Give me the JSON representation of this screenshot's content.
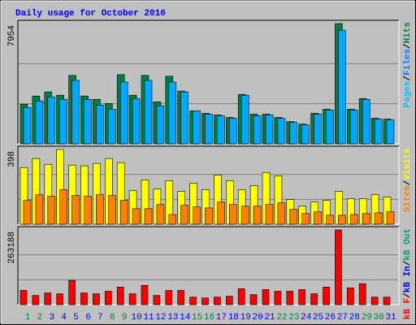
{
  "title": "Daily usage for October 2016",
  "separator": "/",
  "chart_data": [
    {
      "type": "bar",
      "legend": [
        "Pages",
        "Files",
        "Hits"
      ],
      "legend_colors": [
        "#00c0ff",
        "#0080ff",
        "#008040"
      ],
      "series": [
        {
          "color": "#008040",
          "values": [
            2615,
            3160,
            3432,
            3214,
            4522,
            3160,
            2942,
            2670,
            4576,
            3214,
            4522,
            2778,
            4467,
            3487,
            2179,
            2016,
            1907,
            1743,
            3269,
            1961,
            1961,
            1743,
            1471,
            1307,
            2016,
            2288,
            7954,
            2288,
            2996,
            1689,
            1634
          ]
        },
        {
          "color": "#00a8ff",
          "values": [
            2397,
            2833,
            3105,
            2942,
            4195,
            2942,
            2561,
            2288,
            4086,
            2996,
            4195,
            2506,
            4086,
            3432,
            2179,
            1961,
            1852,
            1689,
            3214,
            1852,
            1907,
            1689,
            1416,
            1253,
            1961,
            2234,
            7518,
            2234,
            2942,
            1634,
            1580
          ]
        }
      ],
      "ylim": [
        0,
        7954
      ],
      "yticks": [
        7954
      ]
    },
    {
      "type": "bar",
      "legend": [
        "Sites",
        "Visits"
      ],
      "legend_colors": [
        "#ff8000",
        "#ffff00"
      ],
      "series": [
        {
          "color": "#ffff00",
          "values": [
            302,
            350,
            319,
            398,
            315,
            311,
            324,
            350,
            328,
            179,
            236,
            188,
            232,
            175,
            219,
            184,
            262,
            232,
            184,
            206,
            276,
            258,
            131,
            96,
            118,
            127,
            175,
            136,
            136,
            157,
            144
          ]
        },
        {
          "color": "#ff8000",
          "values": [
            127,
            157,
            149,
            184,
            153,
            149,
            157,
            153,
            127,
            83,
            83,
            105,
            52,
            101,
            92,
            87,
            118,
            105,
            96,
            96,
            105,
            114,
            79,
            57,
            66,
            48,
            48,
            52,
            57,
            61,
            66
          ]
        }
      ],
      "ylim": [
        0,
        398
      ],
      "yticks": [
        398
      ]
    },
    {
      "type": "bar",
      "legend": [
        "kB F",
        "kB In",
        "kB Out"
      ],
      "legend_colors": [
        "#ff0000",
        "#0000ff",
        "#00a080"
      ],
      "series": [
        {
          "color": "#ff0000",
          "values": [
            50270,
            32527,
            41398,
            38441,
            85753,
            41398,
            38441,
            47312,
            62097,
            38441,
            68011,
            32527,
            50270,
            50270,
            26613,
            23656,
            26613,
            29570,
            56183,
            35484,
            53226,
            47312,
            47312,
            53226,
            38441,
            62097,
            263188,
            59140,
            73925,
            26613,
            26613
          ]
        }
      ],
      "ylim": [
        0,
        263188
      ],
      "yticks": [
        263188
      ],
      "categories": [
        "1",
        "2",
        "3",
        "4",
        "5",
        "6",
        "7",
        "8",
        "9",
        "10",
        "11",
        "12",
        "13",
        "14",
        "15",
        "16",
        "17",
        "18",
        "19",
        "20",
        "21",
        "22",
        "23",
        "24",
        "25",
        "26",
        "27",
        "28",
        "29",
        "30",
        "31"
      ],
      "category_color": "#0000ff",
      "weekend_color": "#008040",
      "weekends": [
        0,
        1,
        7,
        8,
        14,
        15,
        21,
        22,
        28,
        29
      ]
    }
  ]
}
